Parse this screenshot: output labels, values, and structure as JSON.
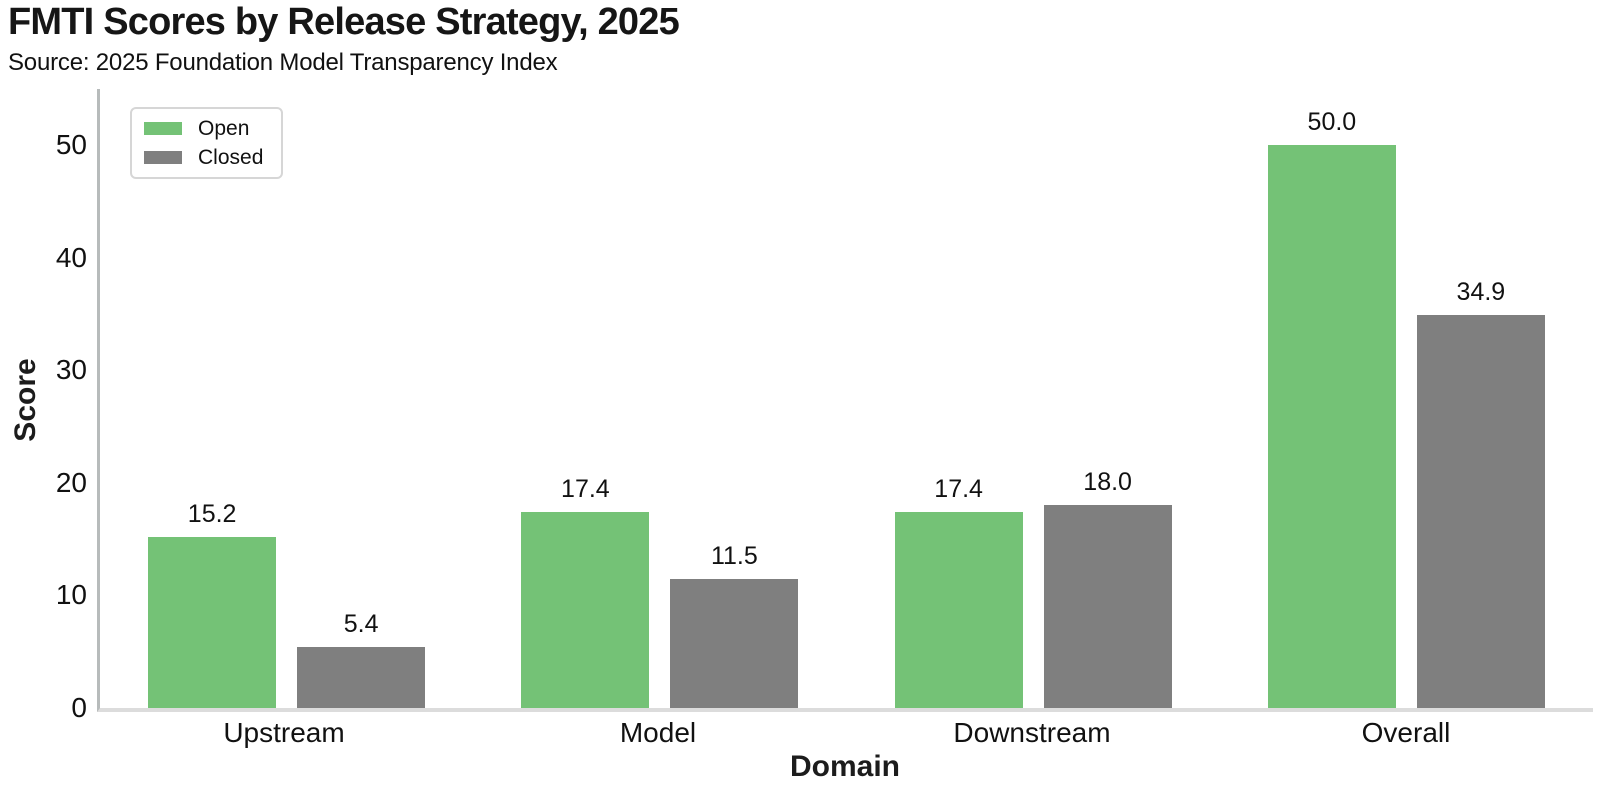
{
  "chart_data": {
    "type": "bar",
    "title": "FMTI Scores by Release Strategy, 2025",
    "subtitle": "Source: 2025 Foundation Model Transparency Index",
    "xlabel": "Domain",
    "ylabel": "Score",
    "categories": [
      "Upstream",
      "Model",
      "Downstream",
      "Overall"
    ],
    "series": [
      {
        "name": "Open",
        "color": "#74c276",
        "values": [
          15.2,
          17.4,
          17.4,
          50.0
        ]
      },
      {
        "name": "Closed",
        "color": "#7f7f7f",
        "values": [
          5.4,
          11.5,
          18.0,
          34.9
        ]
      }
    ],
    "ylim": [
      0,
      55
    ],
    "yticks": [
      0,
      10,
      20,
      30,
      40,
      50
    ],
    "grid": false,
    "legend_position": "upper-left",
    "value_labels": true,
    "value_label_decimals": 1
  }
}
